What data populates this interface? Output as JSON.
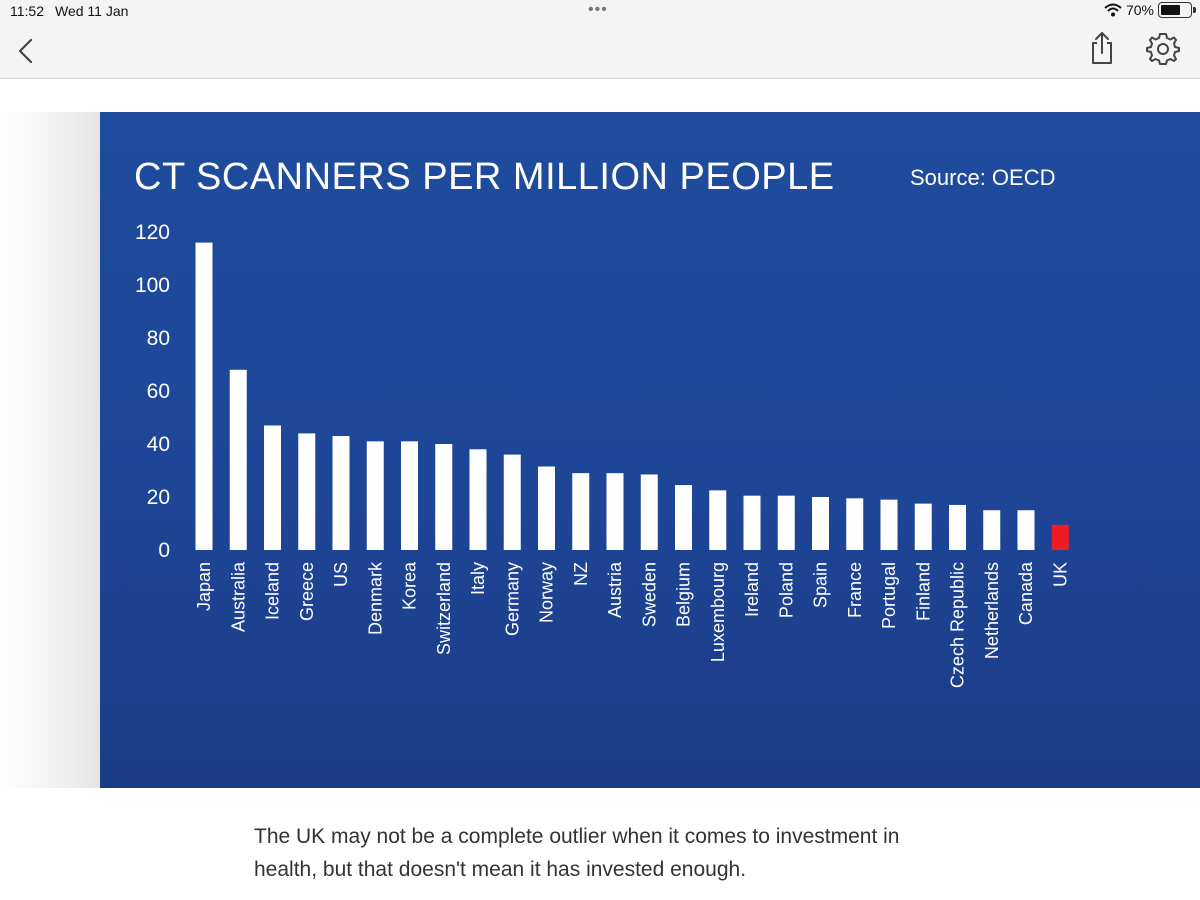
{
  "status_bar": {
    "time": "11:52",
    "date": "Wed 11 Jan",
    "battery": "70%",
    "battery_level": 0.7
  },
  "toolbar": {
    "back_icon": "chevron-left-icon",
    "share_icon": "share-icon",
    "settings_icon": "gear-icon"
  },
  "chart_data": {
    "type": "bar",
    "title": "CT SCANNERS PER MILLION PEOPLE",
    "source": "Source: OECD",
    "categories": [
      "Japan",
      "Australia",
      "Iceland",
      "Greece",
      "US",
      "Denmark",
      "Korea",
      "Switzerland",
      "Italy",
      "Germany",
      "Norway",
      "NZ",
      "Austria",
      "Sweden",
      "Belgium",
      "Luxembourg",
      "Ireland",
      "Poland",
      "Spain",
      "France",
      "Portugal",
      "Finland",
      "Czech Republic",
      "Netherlands",
      "Canada",
      "UK"
    ],
    "values": [
      116,
      68,
      47,
      44,
      43,
      41,
      41,
      40,
      38,
      36,
      31.5,
      29,
      29,
      28.5,
      24.5,
      22.5,
      20.5,
      20.5,
      20,
      19.5,
      19,
      17.5,
      17,
      15,
      15,
      9.5
    ],
    "yticks": [
      "120",
      "100",
      "80",
      "60",
      "40",
      "20",
      "0"
    ],
    "ylim": [
      0,
      120
    ],
    "xlabel": "",
    "ylabel": "",
    "grid": false,
    "colors": {
      "default": "#ffffff",
      "highlight": "#ee1c25",
      "background": "#1e4697"
    },
    "highlight_category": "UK"
  },
  "caption": "The UK may not be a complete outlier when it comes to investment in health, but that doesn't mean it has invested enough."
}
